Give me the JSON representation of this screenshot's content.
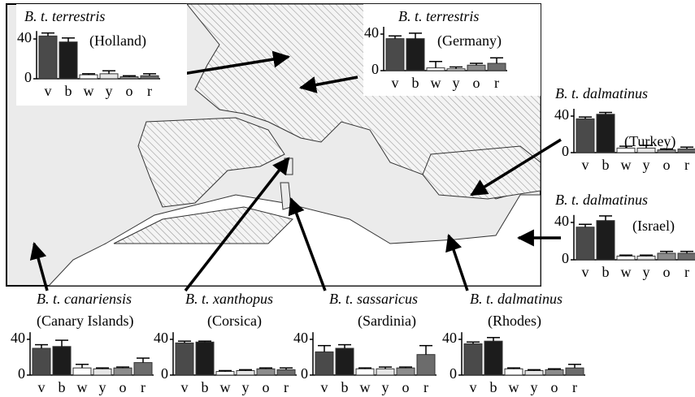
{
  "chart_data": [
    {
      "type": "bar",
      "title": "B. t. terrestris",
      "subtitle": "(Holland)",
      "categories": [
        "v",
        "b",
        "w",
        "y",
        "o",
        "r"
      ],
      "values": [
        43,
        37,
        4,
        5,
        2,
        3
      ],
      "errors": [
        3,
        4,
        1,
        3,
        1,
        2
      ],
      "colors": [
        "#4a4a4a",
        "#1c1c1c",
        "#ffffff",
        "#e6e6e6",
        "#8c8c8c",
        "#6c6c6c"
      ],
      "ylim": [
        0,
        48
      ],
      "yticks": [
        0,
        40
      ]
    },
    {
      "type": "bar",
      "title": "B. t. terrestris",
      "subtitle": "(Germany)",
      "categories": [
        "v",
        "b",
        "w",
        "y",
        "o",
        "r"
      ],
      "values": [
        35,
        35,
        3,
        2,
        6,
        8
      ],
      "errors": [
        3,
        6,
        7,
        2,
        2,
        6
      ],
      "colors": [
        "#4a4a4a",
        "#1c1c1c",
        "#ffffff",
        "#e6e6e6",
        "#8c8c8c",
        "#6c6c6c"
      ],
      "ylim": [
        0,
        48
      ],
      "yticks": [
        0,
        40
      ]
    },
    {
      "type": "bar",
      "title": "B. t. dalmatinus",
      "subtitle": "(Turkey)",
      "categories": [
        "v",
        "b",
        "w",
        "y",
        "o",
        "r"
      ],
      "values": [
        37,
        42,
        5,
        5,
        3,
        4
      ],
      "errors": [
        2,
        2,
        2,
        3,
        1,
        2
      ],
      "colors": [
        "#4a4a4a",
        "#1c1c1c",
        "#ffffff",
        "#e6e6e6",
        "#8c8c8c",
        "#6c6c6c"
      ],
      "ylim": [
        0,
        48
      ],
      "yticks": [
        0,
        40
      ]
    },
    {
      "type": "bar",
      "title": "B. t. dalmatinus",
      "subtitle": "(Israel)",
      "categories": [
        "v",
        "b",
        "w",
        "y",
        "o",
        "r"
      ],
      "values": [
        35,
        42,
        4,
        4,
        7,
        7
      ],
      "errors": [
        3,
        5,
        1,
        1,
        2,
        2
      ],
      "colors": [
        "#4a4a4a",
        "#1c1c1c",
        "#ffffff",
        "#e6e6e6",
        "#8c8c8c",
        "#6c6c6c"
      ],
      "ylim": [
        0,
        48
      ],
      "yticks": [
        0,
        40
      ]
    },
    {
      "type": "bar",
      "title": "B. t. canariensis",
      "subtitle": "(Canary Islands)",
      "categories": [
        "v",
        "b",
        "w",
        "y",
        "o",
        "r"
      ],
      "values": [
        30,
        32,
        8,
        7,
        8,
        14
      ],
      "errors": [
        4,
        7,
        4,
        1,
        1,
        5
      ],
      "colors": [
        "#4a4a4a",
        "#1c1c1c",
        "#ffffff",
        "#e6e6e6",
        "#8c8c8c",
        "#6c6c6c"
      ],
      "ylim": [
        0,
        48
      ],
      "yticks": [
        0,
        40
      ]
    },
    {
      "type": "bar",
      "title": "B. t. xanthopus",
      "subtitle": "(Corsica)",
      "categories": [
        "v",
        "b",
        "w",
        "y",
        "o",
        "r"
      ],
      "values": [
        36,
        37,
        4,
        5,
        7,
        6
      ],
      "errors": [
        2,
        1,
        1,
        1,
        1,
        2
      ],
      "colors": [
        "#4a4a4a",
        "#1c1c1c",
        "#ffffff",
        "#e6e6e6",
        "#8c8c8c",
        "#6c6c6c"
      ],
      "ylim": [
        0,
        48
      ],
      "yticks": [
        0,
        40
      ]
    },
    {
      "type": "bar",
      "title": "B. t. sassaricus",
      "subtitle": "(Sardinia)",
      "categories": [
        "v",
        "b",
        "w",
        "y",
        "o",
        "r"
      ],
      "values": [
        26,
        30,
        7,
        7,
        8,
        23
      ],
      "errors": [
        7,
        4,
        1,
        2,
        1,
        10
      ],
      "colors": [
        "#4a4a4a",
        "#1c1c1c",
        "#ffffff",
        "#e6e6e6",
        "#8c8c8c",
        "#6c6c6c"
      ],
      "ylim": [
        0,
        48
      ],
      "yticks": [
        0,
        40
      ]
    },
    {
      "type": "bar",
      "title": "B. t. dalmatinus",
      "subtitle": "(Rhodes)",
      "categories": [
        "v",
        "b",
        "w",
        "y",
        "o",
        "r"
      ],
      "values": [
        35,
        38,
        7,
        5,
        6,
        8
      ],
      "errors": [
        2,
        4,
        1,
        1,
        1,
        4
      ],
      "colors": [
        "#4a4a4a",
        "#1c1c1c",
        "#ffffff",
        "#e6e6e6",
        "#8c8c8c",
        "#6c6c6c"
      ],
      "ylim": [
        0,
        48
      ],
      "yticks": [
        0,
        40
      ]
    }
  ]
}
